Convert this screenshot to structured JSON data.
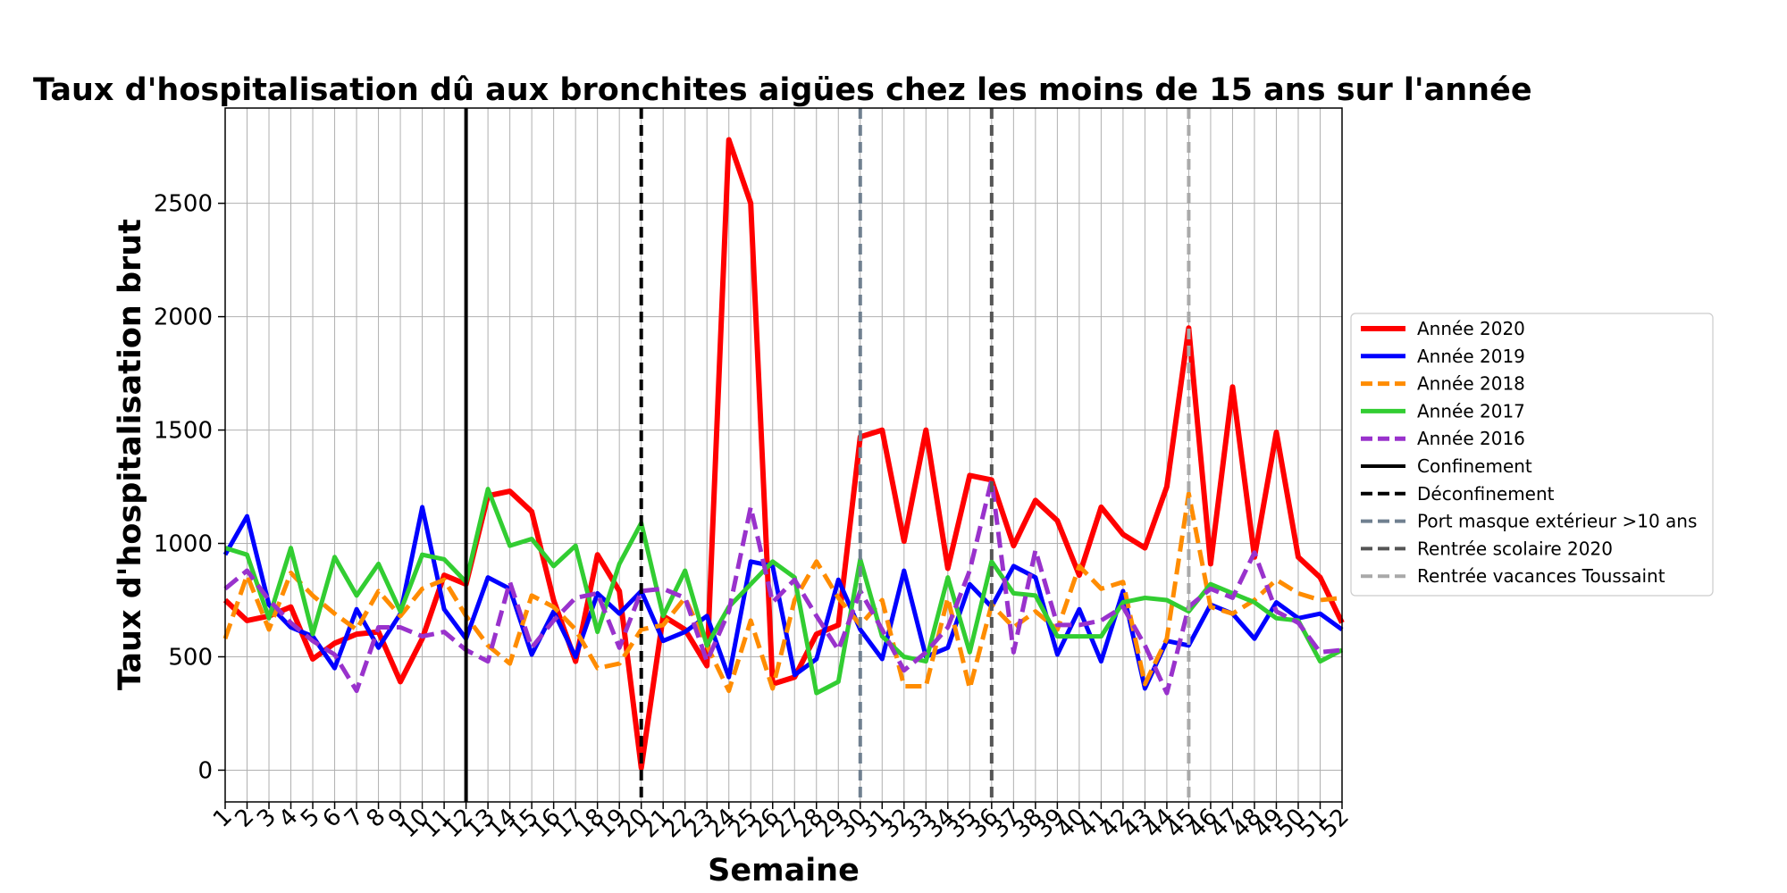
{
  "chart_data": {
    "type": "line",
    "title": "Taux d'hospitalisation dû aux bronchites aigües chez les moins de 15 ans sur l'année",
    "xlabel": "Semaine",
    "ylabel": "Taux d'hospitalisation brut",
    "x": [
      1,
      2,
      3,
      4,
      5,
      6,
      7,
      8,
      9,
      10,
      11,
      12,
      13,
      14,
      15,
      16,
      17,
      18,
      19,
      20,
      21,
      22,
      23,
      24,
      25,
      26,
      27,
      28,
      29,
      30,
      31,
      32,
      33,
      34,
      35,
      36,
      37,
      38,
      39,
      40,
      41,
      42,
      43,
      44,
      45,
      46,
      47,
      48,
      49,
      50,
      51,
      52
    ],
    "xlim": [
      1,
      52
    ],
    "ylim": [
      -140,
      2920
    ],
    "yticks": [
      0,
      500,
      1000,
      1500,
      2000,
      2500
    ],
    "grid": true,
    "legend_position": "right",
    "series": [
      {
        "name": "Année 2020",
        "color": "#ff0000",
        "style": "solid",
        "width": 6,
        "values": [
          750,
          660,
          680,
          720,
          490,
          560,
          600,
          610,
          390,
          580,
          860,
          820,
          1210,
          1230,
          1140,
          750,
          480,
          950,
          790,
          10,
          680,
          620,
          460,
          2780,
          2500,
          380,
          410,
          600,
          640,
          1470,
          1500,
          1010,
          1500,
          890,
          1300,
          1280,
          990,
          1190,
          1100,
          860,
          1160,
          1040,
          980,
          1250,
          1950,
          910,
          1690,
          940,
          1490,
          940,
          850,
          650
        ]
      },
      {
        "name": "Année 2019",
        "color": "#0000ff",
        "style": "solid",
        "width": 5,
        "values": [
          950,
          1120,
          730,
          630,
          590,
          450,
          710,
          540,
          690,
          1160,
          710,
          580,
          850,
          800,
          510,
          700,
          500,
          780,
          690,
          790,
          570,
          610,
          680,
          410,
          920,
          900,
          420,
          490,
          840,
          620,
          490,
          880,
          500,
          540,
          820,
          720,
          900,
          850,
          510,
          710,
          480,
          790,
          360,
          570,
          550,
          730,
          690,
          580,
          740,
          670,
          690,
          620
        ]
      },
      {
        "name": "Année 2018",
        "color": "#ff8c00",
        "style": "dashed",
        "width": 5,
        "values": [
          580,
          860,
          620,
          870,
          770,
          690,
          620,
          790,
          680,
          800,
          840,
          680,
          550,
          470,
          770,
          720,
          620,
          450,
          470,
          620,
          640,
          760,
          550,
          350,
          660,
          360,
          750,
          920,
          760,
          640,
          750,
          370,
          370,
          760,
          360,
          730,
          630,
          700,
          620,
          900,
          800,
          830,
          380,
          580,
          1220,
          720,
          690,
          750,
          840,
          780,
          750,
          760
        ]
      },
      {
        "name": "Année 2017",
        "color": "#32cd32",
        "style": "solid",
        "width": 5,
        "values": [
          980,
          950,
          670,
          980,
          600,
          940,
          770,
          910,
          700,
          950,
          930,
          830,
          1240,
          990,
          1020,
          900,
          990,
          610,
          910,
          1090,
          680,
          880,
          550,
          720,
          820,
          920,
          850,
          340,
          390,
          930,
          590,
          500,
          480,
          850,
          520,
          920,
          780,
          770,
          590,
          590,
          590,
          740,
          760,
          750,
          700,
          820,
          780,
          740,
          670,
          660,
          480,
          530
        ]
      },
      {
        "name": "Année 2016",
        "color": "#9932cc",
        "style": "dashed",
        "width": 5,
        "values": [
          800,
          880,
          750,
          650,
          570,
          510,
          350,
          630,
          630,
          590,
          610,
          530,
          480,
          830,
          540,
          660,
          760,
          780,
          540,
          790,
          800,
          760,
          480,
          700,
          1160,
          740,
          840,
          680,
          530,
          790,
          620,
          440,
          520,
          630,
          880,
          1280,
          520,
          970,
          640,
          640,
          660,
          720,
          550,
          340,
          720,
          800,
          760,
          960,
          700,
          650,
          520,
          530
        ]
      }
    ],
    "vlines": [
      {
        "name": "Confinement",
        "x": 12,
        "color": "#000000",
        "style": "solid",
        "width": 4
      },
      {
        "name": "Déconfinement",
        "x": 20,
        "color": "#000000",
        "style": "dashed",
        "width": 4
      },
      {
        "name": "Port masque extérieur >10 ans",
        "x": 30,
        "color": "#708090",
        "style": "dashed",
        "width": 4
      },
      {
        "name": "Rentrée scolaire 2020",
        "x": 36,
        "color": "#555555",
        "style": "dashed",
        "width": 4
      },
      {
        "name": "Rentrée vacances Toussaint",
        "x": 45,
        "color": "#a9a9a9",
        "style": "dashed",
        "width": 4
      }
    ]
  }
}
